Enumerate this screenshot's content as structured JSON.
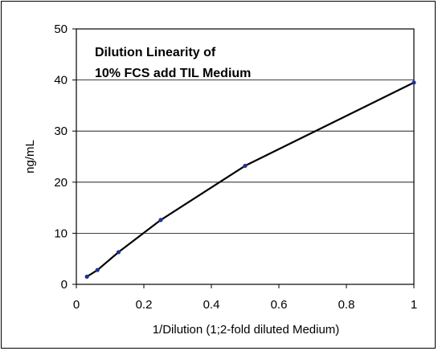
{
  "chart_data": {
    "type": "line",
    "title_lines": [
      "Dilution Linearity of",
      "10% FCS add TIL Medium"
    ],
    "xlabel": "1/Dilution (1;2-fold diluted Medium)",
    "ylabel": "ng/mL",
    "xlim": [
      0,
      1
    ],
    "ylim": [
      0,
      50
    ],
    "xticks": [
      0,
      0.2,
      0.4,
      0.6,
      0.8,
      1
    ],
    "xtick_labels": [
      "0",
      "0.2",
      "0.4",
      "0.6",
      "0.8",
      "1"
    ],
    "yticks": [
      0,
      10,
      20,
      30,
      40,
      50
    ],
    "ytick_labels": [
      "0",
      "10",
      "20",
      "30",
      "40",
      "50"
    ],
    "grid": "horizontal",
    "series": [
      {
        "x": [
          0.03125,
          0.0625,
          0.125,
          0.25,
          0.5,
          1
        ],
        "y": [
          1.5,
          2.8,
          6.3,
          12.6,
          23.2,
          39.5
        ],
        "line_color": "#000000",
        "marker_color": "#1f2f9a"
      }
    ]
  }
}
